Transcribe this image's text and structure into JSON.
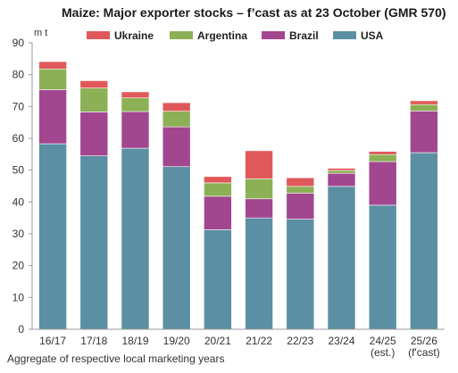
{
  "chart_data": {
    "type": "bar",
    "stacked": true,
    "title": "Maize: Major exporter stocks – f’cast as at 23 October (GMR 570)",
    "ylabel": "m t",
    "xlabel": "Aggregate of respective local marketing years",
    "ylim": [
      0,
      90
    ],
    "yticks": [
      0,
      10,
      20,
      30,
      40,
      50,
      60,
      70,
      80,
      90
    ],
    "grid": false,
    "legend_position": "top",
    "categories": [
      [
        "16/17"
      ],
      [
        "17/18"
      ],
      [
        "18/19"
      ],
      [
        "19/20"
      ],
      [
        "20/21"
      ],
      [
        "21/22"
      ],
      [
        "22/23"
      ],
      [
        "23/24"
      ],
      [
        "24/25",
        "(est.)"
      ],
      [
        "25/26",
        "(f'cast)"
      ]
    ],
    "legend_order": [
      "Ukraine",
      "Argentina",
      "Brazil",
      "USA"
    ],
    "series": [
      {
        "name": "USA",
        "color": "#5b8fa3",
        "values": [
          58.3,
          54.5,
          56.9,
          51.1,
          31.3,
          35.0,
          34.6,
          44.9,
          39.0,
          55.5
        ]
      },
      {
        "name": "Brazil",
        "color": "#a2468f",
        "values": [
          17.0,
          13.8,
          11.5,
          12.5,
          10.5,
          6.0,
          8.2,
          4.1,
          13.7,
          13.1
        ]
      },
      {
        "name": "Argentina",
        "color": "#8cb055",
        "values": [
          6.5,
          7.5,
          4.3,
          4.9,
          4.2,
          6.3,
          2.1,
          0.9,
          2.2,
          2.0
        ]
      },
      {
        "name": "Ukraine",
        "color": "#e0595a",
        "values": [
          2.3,
          2.3,
          1.9,
          2.7,
          2.0,
          8.8,
          2.7,
          0.7,
          1.0,
          1.2
        ]
      }
    ]
  }
}
